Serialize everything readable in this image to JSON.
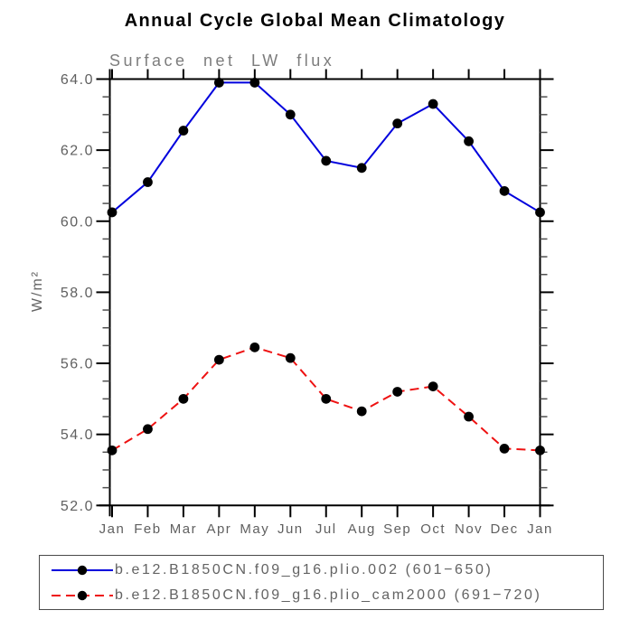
{
  "title": "Annual Cycle Global Mean Climatology",
  "subtitle": "Surface net LW flux",
  "ylabel": "W/m²",
  "colors": {
    "series1": "#0000dd",
    "series2": "#ee1111",
    "marker": "#000000",
    "axis": "#000000",
    "tick_label": "#606060",
    "subtitle": "#7d7d7d",
    "title": "#000000"
  },
  "chart_data": {
    "type": "line",
    "title": "Annual Cycle Global Mean Climatology",
    "subtitle": "Surface net LW flux",
    "xlabel": "",
    "ylabel": "W/m²",
    "categories": [
      "Jan",
      "Feb",
      "Mar",
      "Apr",
      "May",
      "Jun",
      "Jul",
      "Aug",
      "Sep",
      "Oct",
      "Nov",
      "Dec",
      "Jan"
    ],
    "ylim": [
      52.0,
      64.0
    ],
    "ytick_major_step": 2.0,
    "ytick_minor_step": 0.5,
    "ytick_labels": [
      "52.0",
      "54.0",
      "56.0",
      "58.0",
      "60.0",
      "62.0",
      "64.0"
    ],
    "grid": false,
    "legend_position": "bottom",
    "series": [
      {
        "name": "b.e12.B1850CN.f09_g16.plio.002 (601−650)",
        "color": "#0000dd",
        "line_style": "solid",
        "marker": "filled-black-circle",
        "values": [
          60.25,
          61.1,
          62.55,
          63.9,
          63.9,
          63.0,
          61.7,
          61.5,
          62.75,
          63.3,
          62.25,
          60.85,
          60.25
        ]
      },
      {
        "name": "b.e12.B1850CN.f09_g16.plio_cam2000 (691−720)",
        "color": "#ee1111",
        "line_style": "dashed",
        "marker": "filled-black-circle",
        "values": [
          53.55,
          54.15,
          55.0,
          56.1,
          56.45,
          56.15,
          55.0,
          54.65,
          55.2,
          55.35,
          54.5,
          53.6,
          53.55
        ]
      }
    ]
  }
}
